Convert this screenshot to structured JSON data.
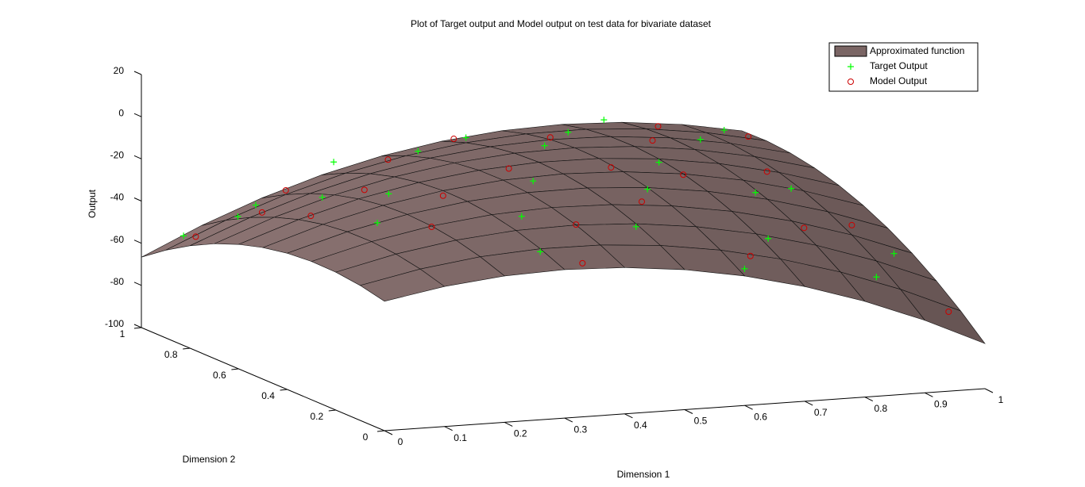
{
  "chart_data": {
    "type": "surface3d",
    "title": "Plot of Target output and Model output on test data for bivariate dataset",
    "xlabel": "Dimension 1",
    "ylabel": "Dimension 2",
    "zlabel": "Output",
    "xlim": [
      0,
      1
    ],
    "ylim": [
      0,
      1
    ],
    "zlim": [
      -100,
      20
    ],
    "xticks": [
      0,
      0.1,
      0.2,
      0.3,
      0.4,
      0.5,
      0.6,
      0.7,
      0.8,
      0.9,
      1
    ],
    "yticks": [
      0,
      0.2,
      0.4,
      0.6,
      0.8,
      1
    ],
    "zticks": [
      -100,
      -80,
      -60,
      -40,
      -20,
      0,
      20
    ],
    "legend": "upper right",
    "surface": {
      "name": "Approximated function",
      "color": "#7a6564",
      "x": [
        0,
        0.1,
        0.2,
        0.3,
        0.4,
        0.5,
        0.6,
        0.7,
        0.8,
        0.9,
        1
      ],
      "y": [
        0,
        0.1,
        0.2,
        0.3,
        0.4,
        0.5,
        0.6,
        0.7,
        0.8,
        0.9,
        1
      ],
      "z": [
        [
          -38.6,
          -33.6,
          -30.6,
          -29.6,
          -30.6,
          -33.6,
          -38.6,
          -45.6,
          -54.6,
          -65.6,
          -78.6
        ],
        [
          -36,
          -30.2,
          -26.4,
          -24.6,
          -24.8,
          -27,
          -31.2,
          -37.4,
          -45.6,
          -55.8,
          -68
        ],
        [
          -34.6,
          -28,
          -23.4,
          -20.8,
          -20.2,
          -21.6,
          -25,
          -30.4,
          -37.8,
          -47.2,
          -58.6
        ],
        [
          -34.4,
          -27,
          -21.6,
          -18.2,
          -16.8,
          -17.4,
          -20,
          -24.6,
          -31.2,
          -39.8,
          -50.4
        ],
        [
          -35.4,
          -27.2,
          -21,
          -16.8,
          -14.6,
          -14.4,
          -16.2,
          -20,
          -25.8,
          -33.6,
          -43.4
        ],
        [
          -37.6,
          -28.6,
          -21.6,
          -16.6,
          -13.6,
          -12.6,
          -13.6,
          -16.6,
          -21.6,
          -28.6,
          -37.6
        ],
        [
          -41,
          -31.2,
          -23.4,
          -17.6,
          -13.8,
          -12,
          -12.2,
          -14.4,
          -18.6,
          -24.8,
          -33
        ],
        [
          -45.6,
          -35,
          -26.4,
          -19.8,
          -15.2,
          -12.6,
          -12,
          -13.4,
          -16.8,
          -22.2,
          -29.6
        ],
        [
          -51.4,
          -40,
          -30.6,
          -23.2,
          -17.8,
          -14.4,
          -13,
          -13.6,
          -16.2,
          -20.8,
          -27.4
        ],
        [
          -58.4,
          -46.2,
          -36,
          -27.8,
          -21.6,
          -17.4,
          -15.2,
          -15,
          -16.8,
          -20.6,
          -26.4
        ],
        [
          -66.6,
          -53.6,
          -42.6,
          -33.6,
          -26.6,
          -21.6,
          -18.6,
          -17.6,
          -18.6,
          -21.6,
          -26.6
        ]
      ]
    },
    "series": [
      {
        "name": "Target Output",
        "color": "#00ff00",
        "marker": "+",
        "x": [
          0.05,
          0.1,
          0.15,
          0.2,
          0.25,
          0.3,
          0.35,
          0.4,
          0.45,
          0.5,
          0.5,
          0.55,
          0.6,
          0.62,
          0.65,
          0.7,
          0.72,
          0.75,
          0.8,
          0.85,
          0.88,
          0.9,
          0.93,
          0.97,
          0.3,
          0.15
        ],
        "y": [
          0.95,
          0.85,
          0.9,
          0.75,
          0.6,
          0.95,
          0.3,
          0.85,
          0.5,
          0.9,
          0.2,
          0.7,
          0.4,
          0.05,
          0.85,
          0.6,
          0.2,
          0.95,
          0.45,
          0.8,
          0.15,
          0.55,
          0.9,
          0.3,
          0.1,
          0.4
        ],
        "z": [
          -55,
          -42,
          -40,
          -30,
          -22,
          -25,
          -20,
          -17,
          -15,
          -15,
          -23,
          -10,
          -17,
          -38,
          -13,
          -16,
          -33,
          -14,
          -25,
          -18,
          -52,
          -30,
          -20,
          -50,
          -26,
          -24
        ]
      },
      {
        "name": "Model Output",
        "color": "#cc0000",
        "marker": "o",
        "x": [
          0.05,
          0.12,
          0.2,
          0.25,
          0.3,
          0.35,
          0.4,
          0.45,
          0.5,
          0.55,
          0.6,
          0.65,
          0.7,
          0.75,
          0.8,
          0.82,
          0.88,
          0.92,
          0.95,
          0.98,
          0.2,
          0.6,
          0.35,
          0.1
        ],
        "y": [
          0.9,
          0.8,
          0.9,
          0.7,
          0.5,
          0.85,
          0.2,
          0.6,
          0.95,
          0.3,
          0.8,
          0.1,
          0.5,
          0.75,
          0.25,
          0.9,
          0.6,
          0.35,
          0.85,
          0.1,
          0.3,
          0.55,
          0.05,
          0.55
        ],
        "z": [
          -53,
          -38,
          -34,
          -25,
          -19,
          -20,
          -20,
          -14,
          -18,
          -17,
          -12,
          -35,
          -17,
          -14,
          -32,
          -16,
          -24,
          -38,
          -21,
          -68,
          -22,
          -14,
          -30,
          -27
        ]
      }
    ]
  }
}
